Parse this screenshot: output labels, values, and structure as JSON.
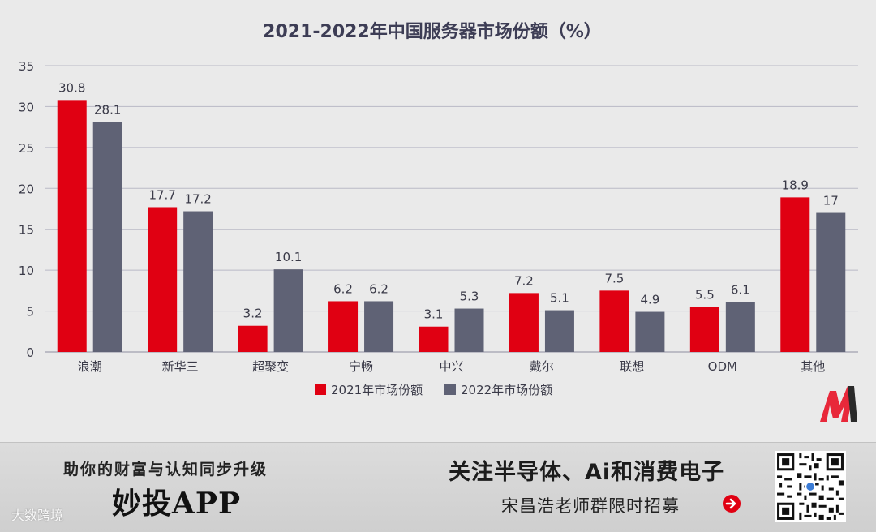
{
  "chart_data": {
    "type": "bar",
    "title": "2021-2022年中国服务器市场份额（%）",
    "categories": [
      "浪潮",
      "新华三",
      "超聚变",
      "宁畅",
      "中兴",
      "戴尔",
      "联想",
      "ODM",
      "其他"
    ],
    "series": [
      {
        "name": "2021年市场份额",
        "color": "#e00012",
        "values": [
          30.8,
          17.7,
          3.2,
          6.2,
          3.1,
          7.2,
          7.5,
          5.5,
          18.9
        ]
      },
      {
        "name": "2022年市场份额",
        "color": "#5f6275",
        "values": [
          28.1,
          17.2,
          10.1,
          6.2,
          5.3,
          5.1,
          4.9,
          6.1,
          17
        ]
      }
    ],
    "ylim": [
      0,
      35
    ],
    "yticks": [
      0,
      5,
      10,
      15,
      20,
      25,
      30,
      35
    ],
    "xlabel": "",
    "ylabel": "",
    "grid": true,
    "legend": "bottom-center"
  },
  "footer": {
    "slogan": "助你的财富与认知同步升级",
    "app_name": "妙投APP",
    "headline": "关注半导体、Ai和消费电子",
    "subline": "宋昌浩老师群限时招募",
    "watermark": "大数跨境"
  },
  "colors": {
    "accent": "#e00012",
    "secondary": "#5f6275",
    "grid": "#b9b9c6",
    "text": "#3a3a48"
  },
  "icons": {
    "logo": "brand-m-logo-icon",
    "arrow": "arrow-right-circle-icon",
    "qr": "qr-code-icon"
  }
}
